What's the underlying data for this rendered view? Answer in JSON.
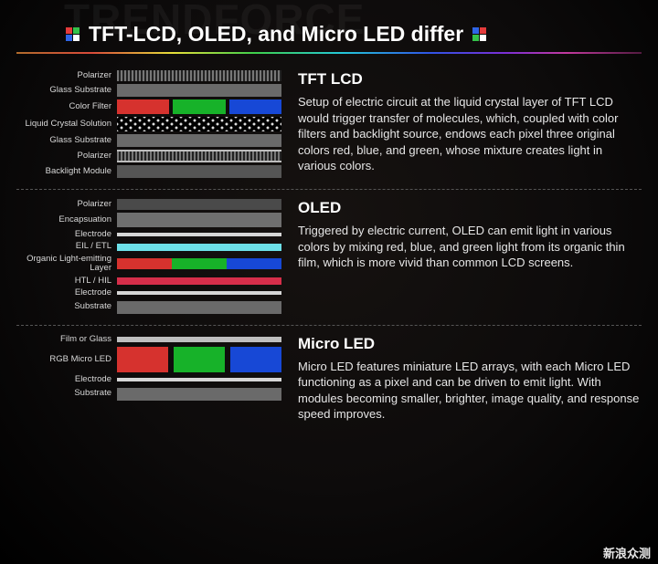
{
  "page": {
    "background_color": "#0d0b0b",
    "background_gradient": "radial-gradient(ellipse at 50% 40%, #161210 0%, #0d0b0b 55%, #000 100%)"
  },
  "brand_watermark": "TRENDFORCE",
  "corner_watermark_top": "新浪众测",
  "title": "TFT-LCD, OLED, and Micro LED differ",
  "title_pixels": {
    "left": [
      "#e43b3b",
      "#34c24a",
      "#2f65e6",
      "#ffffff"
    ],
    "right": [
      "#2f65e6",
      "#e43b3b",
      "#34c24a",
      "#ffffff"
    ]
  },
  "rainbow_gradient": "linear-gradient(90deg,#b06b2c 0%,#d94a3a 12%,#e6df3a 25%,#3fcf4a 38%,#24c8d8 52%,#2f55e6 66%,#7a2fd6 78%,#c23a9e 88%,#531a40 100%)",
  "divider_color": "#555555",
  "tft": {
    "title": "TFT LCD",
    "desc": "Setup of electric circuit at the liquid crystal layer of TFT LCD would trigger transfer of molecules, which, coupled with color filters and backlight source, endows each pixel three original colors red, blue, and green, whose mixture creates light in various colors.",
    "layers": [
      {
        "label": "Polarizer",
        "type": "hatched",
        "h": 12,
        "color": "#777"
      },
      {
        "label": "Glass Substrate",
        "type": "solid",
        "h": 14,
        "color": "#6a6a6a"
      },
      {
        "label": "Color Filter",
        "type": "rgb",
        "h": 16,
        "gap": 4,
        "colors": [
          "#d6322e",
          "#17b229",
          "#1748d6"
        ]
      },
      {
        "label": "Liquid Crystal Solution",
        "type": "dots",
        "h": 16
      },
      {
        "label": "Glass Substrate",
        "type": "solid",
        "h": 14,
        "color": "#6a6a6a"
      },
      {
        "label": "Polarizer",
        "type": "hatched-bordered",
        "h": 14,
        "color": "#777"
      },
      {
        "label": "Backlight Module",
        "type": "solid",
        "h": 14,
        "color": "#555555"
      }
    ]
  },
  "oled": {
    "title": "OLED",
    "desc": "Triggered by electric current, OLED can emit light in various colors by mixing red, blue, and green light from its organic thin film, which is more vivid than common LCD screens.",
    "layers": [
      {
        "label": "Polarizer",
        "type": "solid",
        "h": 12,
        "color": "#4a4a4a"
      },
      {
        "label": "Encapsuation",
        "type": "solid",
        "h": 16,
        "color": "#6f6f6f"
      },
      {
        "label": "Electrode",
        "type": "solid",
        "h": 4,
        "color": "#d6d6d6"
      },
      {
        "label": "EIL / ETL",
        "type": "solid",
        "h": 8,
        "color": "#6de0e8"
      },
      {
        "label": "Organic Light-emitting Layer",
        "type": "rgb",
        "h": 12,
        "gap": 0,
        "colors": [
          "#d6322e",
          "#17b229",
          "#1748d6"
        ]
      },
      {
        "label": "HTL / HIL",
        "type": "solid",
        "h": 8,
        "color": "#d62e4a"
      },
      {
        "label": "Electrode",
        "type": "solid",
        "h": 4,
        "color": "#d6d6d6"
      },
      {
        "label": "Substrate",
        "type": "solid",
        "h": 14,
        "color": "#6a6a6a"
      }
    ]
  },
  "microled": {
    "title": "Micro LED",
    "desc": "Micro LED features miniature LED arrays, with each Micro LED functioning as a pixel and can be driven to emit light. With modules becoming smaller, brighter, image quality, and response speed improves.",
    "layers": [
      {
        "label": "Film or Glass",
        "type": "solid",
        "h": 6,
        "color": "#bfbfbf"
      },
      {
        "label": "RGB Micro LED",
        "type": "rgb",
        "h": 28,
        "gap": 6,
        "colors": [
          "#d6322e",
          "#17b229",
          "#1748d6"
        ]
      },
      {
        "label": "Electrode",
        "type": "solid",
        "h": 4,
        "color": "#d6d6d6"
      },
      {
        "label": "Substrate",
        "type": "solid",
        "h": 14,
        "color": "#6a6a6a"
      }
    ]
  }
}
